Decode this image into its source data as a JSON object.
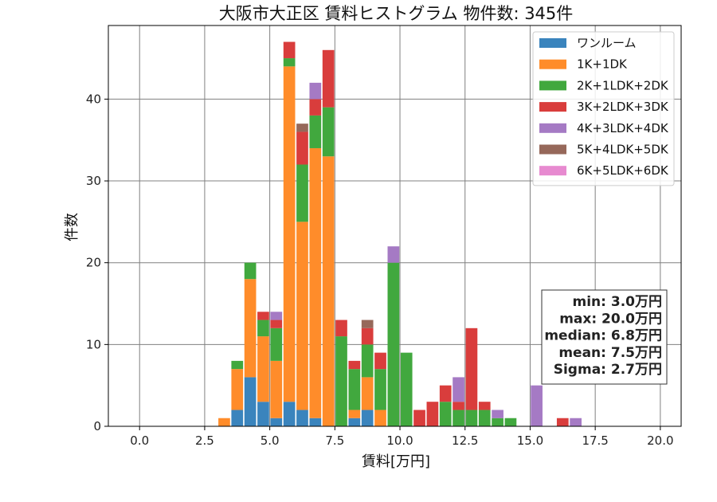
{
  "chart_data": {
    "type": "bar",
    "stacked": true,
    "title": "大阪市大正区 賃料ヒストグラム 物件数: 345件",
    "xlabel": "賃料[万円]",
    "ylabel": "件数",
    "xlim": [
      -1.2,
      20.8
    ],
    "ylim": [
      0,
      49
    ],
    "bin_width": 0.5,
    "grid": true,
    "legend_position": "top-right",
    "x_ticks": [
      "0.0",
      "2.5",
      "5.0",
      "7.5",
      "10.0",
      "12.5",
      "15.0",
      "17.5",
      "20.0"
    ],
    "y_ticks": [
      "0",
      "10",
      "20",
      "30",
      "40"
    ],
    "bins": [
      3.0,
      3.5,
      4.0,
      4.5,
      5.0,
      5.5,
      6.0,
      6.5,
      7.0,
      7.5,
      8.0,
      8.5,
      9.0,
      9.5,
      10.0,
      10.5,
      11.0,
      11.5,
      12.0,
      12.5,
      13.0,
      13.5,
      14.0,
      14.5,
      15.0,
      15.5,
      16.0,
      16.5
    ],
    "series": [
      {
        "name": "ワンルーム",
        "color": "#3a84bd",
        "values": [
          0,
          2,
          6,
          3,
          1,
          3,
          2,
          1,
          0,
          0,
          1,
          2,
          0,
          0,
          0,
          0,
          0,
          0,
          0,
          0,
          0,
          0,
          0,
          0,
          0,
          0,
          0,
          0
        ]
      },
      {
        "name": "1K+1DK",
        "color": "#ff8c2a",
        "values": [
          1,
          5,
          12,
          8,
          7,
          41,
          23,
          33,
          33,
          0,
          1,
          4,
          2,
          0,
          0,
          0,
          0,
          0,
          0,
          0,
          0,
          0,
          0,
          0,
          0,
          0,
          0,
          0
        ]
      },
      {
        "name": "2K+1LDK+2DK",
        "color": "#41a83e",
        "values": [
          0,
          1,
          2,
          2,
          4,
          1,
          7,
          4,
          6,
          11,
          5,
          4,
          5,
          20,
          9,
          0,
          0,
          3,
          2,
          2,
          2,
          1,
          1,
          0,
          0,
          0,
          0,
          0
        ]
      },
      {
        "name": "3K+2LDK+3DK",
        "color": "#d93d3c",
        "values": [
          0,
          0,
          0,
          1,
          1,
          2,
          4,
          2,
          7,
          2,
          1,
          2,
          2,
          0,
          0,
          2,
          3,
          2,
          1,
          10,
          1,
          0,
          0,
          0,
          0,
          0,
          1,
          0
        ]
      },
      {
        "name": "4K+3LDK+4DK",
        "color": "#a57ac4",
        "values": [
          0,
          0,
          0,
          0,
          1,
          0,
          0,
          2,
          0,
          0,
          0,
          0,
          0,
          2,
          0,
          0,
          0,
          0,
          3,
          0,
          0,
          1,
          0,
          0,
          5,
          0,
          0,
          1
        ]
      },
      {
        "name": "5K+4LDK+5DK",
        "color": "#96685a",
        "values": [
          0,
          0,
          0,
          0,
          0,
          0,
          1,
          0,
          0,
          0,
          0,
          1,
          0,
          0,
          0,
          0,
          0,
          0,
          0,
          0,
          0,
          0,
          0,
          0,
          0,
          0,
          0,
          0
        ]
      },
      {
        "name": "6K+5LDK+6DK",
        "color": "#e78ad0",
        "values": [
          0,
          0,
          0,
          0,
          0,
          0,
          0,
          0,
          0,
          0,
          0,
          0,
          0,
          0,
          0,
          0,
          0,
          0,
          0,
          0,
          0,
          0,
          0,
          0,
          0,
          0,
          0,
          0
        ]
      }
    ],
    "stats": [
      "min: 3.0万円",
      "max: 20.0万円",
      "median: 6.8万円",
      "mean: 7.5万円",
      "Sigma: 2.7万円"
    ]
  }
}
